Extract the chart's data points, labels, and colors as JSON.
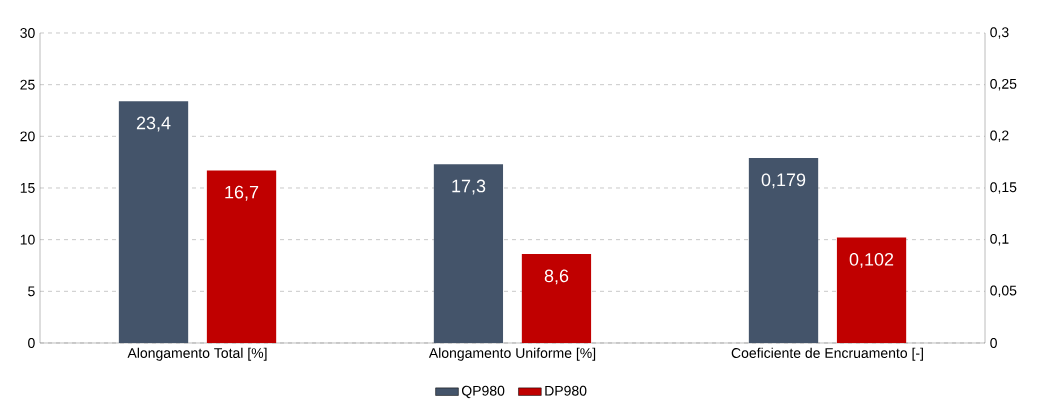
{
  "chart_data": {
    "type": "bar",
    "categories": [
      "Alongamento Total [%]",
      "Alongamento Uniforme [%]",
      "Coeficiente de Encruamento [-]"
    ],
    "series": [
      {
        "name": "QP980",
        "color": "#44546a",
        "values": [
          23.4,
          17.3,
          null
        ],
        "value_labels": [
          "23,4",
          "17,3",
          null
        ]
      },
      {
        "name": "DP980",
        "color": "#c00000",
        "values": [
          16.7,
          8.6,
          null
        ],
        "value_labels": [
          "16,7",
          "8,6",
          null
        ]
      },
      {
        "color": "#44546a",
        "axis": "y2",
        "values": [
          null,
          null,
          0.179
        ],
        "value_labels": [
          null,
          null,
          "0,179"
        ]
      },
      {
        "color": "#c00000",
        "axis": "y2",
        "values": [
          null,
          null,
          0.102
        ],
        "value_labels": [
          null,
          null,
          "0,102"
        ]
      }
    ],
    "ylim": [
      0,
      30
    ],
    "yticks": [
      0,
      5,
      10,
      15,
      20,
      25,
      30
    ],
    "y2lim": [
      0,
      0.3
    ],
    "y2ticks": [
      0,
      {
        "value": 0.05,
        "label": "0,05"
      },
      {
        "value": 0.1,
        "label": "0,1"
      },
      {
        "value": 0.15,
        "label": "0,15"
      },
      {
        "value": 0.2,
        "label": "0,2"
      },
      {
        "value": 0.25,
        "label": "0,25"
      },
      {
        "value": 0.3,
        "label": "0,3"
      }
    ],
    "grid": "y",
    "legend": "bottom"
  }
}
